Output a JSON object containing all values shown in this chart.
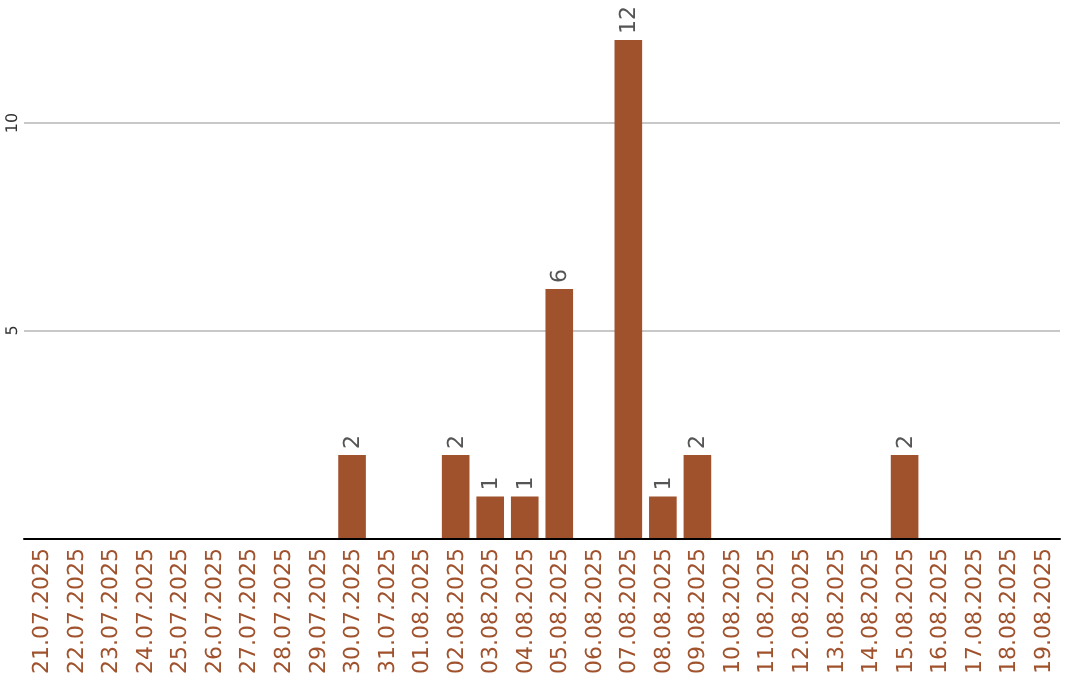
{
  "chart_data": {
    "type": "bar",
    "categories": [
      "21.07.2025",
      "22.07.2025",
      "23.07.2025",
      "24.07.2025",
      "25.07.2025",
      "26.07.2025",
      "27.07.2025",
      "28.07.2025",
      "29.07.2025",
      "30.07.2025",
      "31.07.2025",
      "01.08.2025",
      "02.08.2025",
      "03.08.2025",
      "04.08.2025",
      "05.08.2025",
      "06.08.2025",
      "07.08.2025",
      "08.08.2025",
      "09.08.2025",
      "10.08.2025",
      "11.08.2025",
      "12.08.2025",
      "13.08.2025",
      "14.08.2025",
      "15.08.2025",
      "16.08.2025",
      "17.08.2025",
      "18.08.2025",
      "19.08.2025"
    ],
    "values": [
      0,
      0,
      0,
      0,
      0,
      0,
      0,
      0,
      0,
      2,
      0,
      0,
      2,
      1,
      1,
      6,
      0,
      12,
      1,
      2,
      0,
      0,
      0,
      0,
      0,
      2,
      0,
      0,
      0,
      0
    ],
    "value_labels": [
      null,
      null,
      null,
      null,
      null,
      null,
      null,
      null,
      null,
      "2",
      null,
      null,
      "2",
      "1",
      "1",
      "6",
      null,
      "12",
      "1",
      "2",
      null,
      null,
      null,
      null,
      null,
      "2",
      null,
      null,
      null,
      null
    ],
    "color": "#a0522d",
    "ylim": [
      0,
      12
    ],
    "yticks": [
      {
        "value": 0,
        "label": null
      },
      5,
      10
    ],
    "grid": "y"
  }
}
